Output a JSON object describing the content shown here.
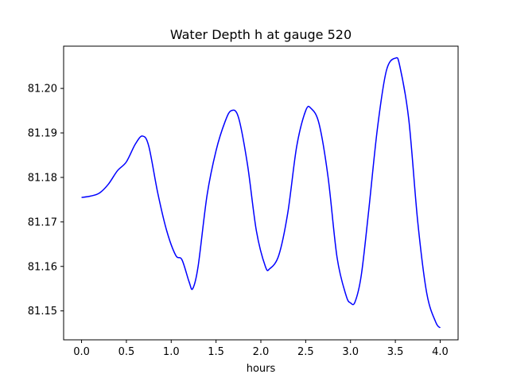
{
  "chart_data": {
    "type": "line",
    "title": "Water Depth h at gauge 520",
    "xlabel": "hours",
    "ylabel": "",
    "xlim": [
      -0.2,
      4.2
    ],
    "ylim": [
      81.1435,
      81.2095
    ],
    "grid": false,
    "xticks": [
      0.0,
      0.5,
      1.0,
      1.5,
      2.0,
      2.5,
      3.0,
      3.5,
      4.0
    ],
    "xtick_labels": [
      "0.0",
      "0.5",
      "1.0",
      "1.5",
      "2.0",
      "2.5",
      "3.0",
      "3.5",
      "4.0"
    ],
    "yticks": [
      81.15,
      81.16,
      81.17,
      81.18,
      81.19,
      81.2
    ],
    "ytick_labels": [
      "81.15",
      "81.16",
      "81.17",
      "81.18",
      "81.19",
      "81.20"
    ],
    "series": [
      {
        "color": "#0000ff",
        "x": [
          0.0,
          0.1,
          0.2,
          0.3,
          0.4,
          0.5,
          0.6,
          0.68,
          0.75,
          0.85,
          0.95,
          1.05,
          1.12,
          1.2,
          1.24,
          1.3,
          1.4,
          1.5,
          1.6,
          1.67,
          1.75,
          1.85,
          1.95,
          2.05,
          2.1,
          2.2,
          2.3,
          2.4,
          2.5,
          2.56,
          2.65,
          2.75,
          2.85,
          2.95,
          3.0,
          3.05,
          3.12,
          3.2,
          3.3,
          3.4,
          3.5,
          3.55,
          3.65,
          3.75,
          3.85,
          3.95,
          4.0
        ],
        "y": [
          81.1755,
          81.1758,
          81.1765,
          81.1785,
          81.1815,
          81.1835,
          81.1875,
          81.1893,
          81.187,
          81.1765,
          81.168,
          81.1625,
          81.1615,
          81.1565,
          81.155,
          81.16,
          81.176,
          81.186,
          81.1925,
          81.195,
          81.1935,
          81.183,
          81.168,
          81.16,
          81.1595,
          81.1625,
          81.172,
          81.187,
          81.195,
          81.1955,
          81.192,
          81.18,
          81.162,
          81.1535,
          81.1518,
          81.152,
          81.158,
          81.172,
          81.191,
          81.204,
          81.2068,
          81.205,
          81.193,
          81.17,
          81.154,
          81.1475,
          81.1462
        ]
      }
    ]
  }
}
